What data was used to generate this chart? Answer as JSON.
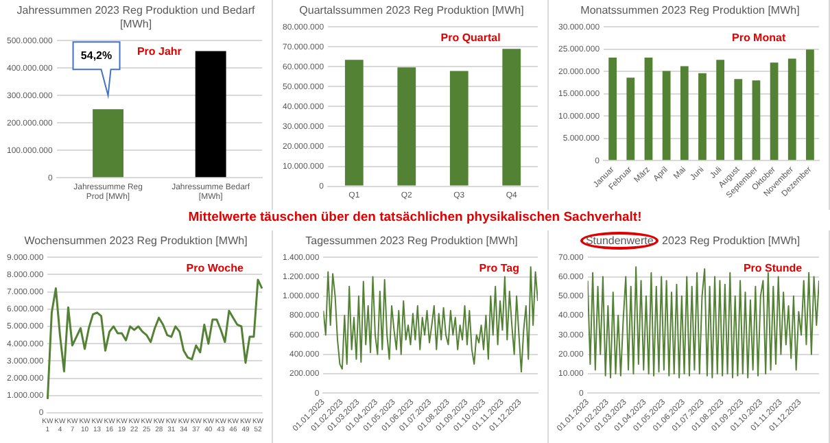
{
  "chart_data": [
    {
      "type": "bar",
      "title": "Jahressummen 2023 Reg Produktion und Bedarf [MWh]",
      "categories": [
        "Jahressumme Reg Prod [MWh]",
        "Jahressumme Bedarf [MWh]"
      ],
      "values": [
        250000000,
        462000000
      ],
      "colors": [
        "#548235",
        "#000000"
      ],
      "ylim": [
        0,
        500000000
      ],
      "yticks": [
        {
          "value": 0,
          "label": "0"
        },
        {
          "value": 100000000,
          "label": "100.000.000"
        },
        {
          "value": 200000000,
          "label": "200.000.000"
        },
        {
          "value": 300000000,
          "label": "300.000.000"
        },
        {
          "value": 400000000,
          "label": "400.000.000"
        },
        {
          "value": 500000000,
          "label": "500.000.000"
        }
      ],
      "grid": "y",
      "annotations": [
        "54,2%",
        "Pro Jahr"
      ]
    },
    {
      "type": "bar",
      "title": "Quartalssummen 2023 Reg Produktion [MWh]",
      "categories": [
        "Q1",
        "Q2",
        "Q3",
        "Q4"
      ],
      "values": [
        63500000,
        59700000,
        57900000,
        69000000
      ],
      "color": "#548235",
      "ylim": [
        0,
        80000000
      ],
      "yticks": [
        {
          "value": 0,
          "label": "0"
        },
        {
          "value": 10000000,
          "label": "10.000.000"
        },
        {
          "value": 20000000,
          "label": "20.000.000"
        },
        {
          "value": 30000000,
          "label": "30.000.000"
        },
        {
          "value": 40000000,
          "label": "40.000.000"
        },
        {
          "value": 50000000,
          "label": "50.000.000"
        },
        {
          "value": 60000000,
          "label": "60.000.000"
        },
        {
          "value": 70000000,
          "label": "70.000.000"
        },
        {
          "value": 80000000,
          "label": "80.000.000"
        }
      ],
      "grid": "y",
      "annotations": [
        "Pro Quartal"
      ]
    },
    {
      "type": "bar",
      "title": "Monatssummen 2023 Reg Produktion [MWh]",
      "categories": [
        "Januar",
        "Februar",
        "März",
        "April",
        "Mai",
        "Juni",
        "Juli",
        "August",
        "September",
        "Oktober",
        "November",
        "Dezember"
      ],
      "values": [
        23100000,
        18600000,
        23100000,
        20100000,
        21200000,
        19600000,
        22600000,
        18300000,
        18000000,
        22000000,
        22900000,
        24900000
      ],
      "color": "#548235",
      "ylim": [
        0,
        30000000
      ],
      "yticks": [
        {
          "value": 0,
          "label": "0"
        },
        {
          "value": 5000000,
          "label": "5.000.000"
        },
        {
          "value": 10000000,
          "label": "10.000.000"
        },
        {
          "value": 15000000,
          "label": "15.000.000"
        },
        {
          "value": 20000000,
          "label": "20.000.000"
        },
        {
          "value": 25000000,
          "label": "25.000.000"
        },
        {
          "value": 30000000,
          "label": "30.000.000"
        }
      ],
      "grid": "y",
      "annotations": [
        "Pro Monat"
      ]
    },
    {
      "type": "other",
      "title": "Mittelwerte täuschen über den tatsächlichen physikalischen Sachverhalt!"
    },
    {
      "type": "line",
      "title": "Wochensummen 2023 Reg Produktion [MWh]",
      "categories": [
        "KW 1",
        null,
        null,
        "KW 4",
        null,
        null,
        "KW 7",
        null,
        null,
        "KW 10",
        null,
        null,
        "KW 13",
        null,
        null,
        "KW 16",
        null,
        null,
        "KW 19",
        null,
        null,
        "KW 22",
        null,
        null,
        "KW 25",
        null,
        null,
        "KW 28",
        null,
        null,
        "KW 31",
        null,
        null,
        "KW 34",
        null,
        null,
        "KW 37",
        null,
        null,
        "KW 40",
        null,
        null,
        "KW 43",
        null,
        null,
        "KW 46",
        null,
        null,
        "KW 49",
        null,
        null,
        "KW 52",
        null
      ],
      "values": [
        800000,
        5800000,
        7200000,
        4500000,
        2400000,
        6100000,
        3900000,
        4400000,
        4900000,
        3700000,
        4900000,
        5700000,
        5800000,
        5600000,
        3600000,
        4700000,
        5000000,
        4600000,
        4600000,
        4200000,
        5000000,
        4800000,
        5000000,
        4700000,
        4500000,
        4100000,
        4900000,
        5500000,
        5100000,
        4500000,
        4400000,
        5000000,
        4700000,
        3600000,
        3200000,
        3100000,
        3900000,
        3500000,
        5100000,
        4000000,
        5400000,
        5400000,
        4800000,
        4100000,
        5900000,
        5500000,
        5100000,
        5000000,
        2900000,
        4400000,
        4400000,
        7700000,
        7200000
      ],
      "color": "#548235",
      "marker": "none",
      "ylim": [
        0,
        9000000
      ],
      "yticks": [
        {
          "value": 0,
          "label": "0"
        },
        {
          "value": 1000000,
          "label": "1.000.000"
        },
        {
          "value": 2000000,
          "label": "2.000.000"
        },
        {
          "value": 3000000,
          "label": "3.000.000"
        },
        {
          "value": 4000000,
          "label": "4.000.000"
        },
        {
          "value": 5000000,
          "label": "5.000.000"
        },
        {
          "value": 6000000,
          "label": "6.000.000"
        },
        {
          "value": 7000000,
          "label": "7.000.000"
        },
        {
          "value": 8000000,
          "label": "8.000.000"
        },
        {
          "value": 9000000,
          "label": "9.000.000"
        }
      ],
      "grid": "y",
      "annotations": [
        "Pro Woche"
      ]
    },
    {
      "type": "line",
      "title": "Tagessummen 2023 Reg Produktion [MWh]",
      "x": [
        "2023-01-01",
        "2023-01-05",
        "2023-01-09",
        "2023-01-13",
        "2023-01-17",
        "2023-01-21",
        "2023-01-25",
        "2023-01-29",
        "2023-02-02",
        "2023-02-06",
        "2023-02-10",
        "2023-02-14",
        "2023-02-18",
        "2023-02-22",
        "2023-02-26",
        "2023-03-02",
        "2023-03-06",
        "2023-03-10",
        "2023-03-14",
        "2023-03-18",
        "2023-03-22",
        "2023-03-26",
        "2023-03-30",
        "2023-04-03",
        "2023-04-07",
        "2023-04-11",
        "2023-04-15",
        "2023-04-19",
        "2023-04-23",
        "2023-04-27",
        "2023-05-01",
        "2023-05-05",
        "2023-05-09",
        "2023-05-13",
        "2023-05-17",
        "2023-05-21",
        "2023-05-25",
        "2023-05-29",
        "2023-06-02",
        "2023-06-06",
        "2023-06-10",
        "2023-06-14",
        "2023-06-18",
        "2023-06-22",
        "2023-06-26",
        "2023-06-30",
        "2023-07-04",
        "2023-07-08",
        "2023-07-12",
        "2023-07-16",
        "2023-07-20",
        "2023-07-24",
        "2023-07-28",
        "2023-08-01",
        "2023-08-05",
        "2023-08-09",
        "2023-08-13",
        "2023-08-17",
        "2023-08-21",
        "2023-08-25",
        "2023-08-29",
        "2023-09-02",
        "2023-09-06",
        "2023-09-10",
        "2023-09-14",
        "2023-09-18",
        "2023-09-22",
        "2023-09-26",
        "2023-09-30",
        "2023-10-04",
        "2023-10-08",
        "2023-10-12",
        "2023-10-16",
        "2023-10-20",
        "2023-10-24",
        "2023-10-28",
        "2023-11-01",
        "2023-11-05",
        "2023-11-09",
        "2023-11-13",
        "2023-11-17",
        "2023-11-21",
        "2023-11-25",
        "2023-11-29",
        "2023-12-03",
        "2023-12-07",
        "2023-12-11",
        "2023-12-15",
        "2023-12-19",
        "2023-12-23",
        "2023-12-27",
        "2023-12-31"
      ],
      "values": [
        850000,
        600000,
        1250000,
        700000,
        1230000,
        1000000,
        550000,
        300000,
        250000,
        800000,
        300000,
        1100000,
        450000,
        780000,
        350000,
        1000000,
        320000,
        1150000,
        500000,
        900000,
        420000,
        1200000,
        600000,
        400000,
        1050000,
        450000,
        1170000,
        600000,
        350000,
        900000,
        650000,
        450000,
        850000,
        400000,
        950000,
        550000,
        700000,
        500000,
        820000,
        550000,
        900000,
        450000,
        780000,
        600000,
        850000,
        520000,
        700000,
        900000,
        450000,
        820000,
        550000,
        880000,
        600000,
        500000,
        850000,
        600000,
        780000,
        450000,
        700000,
        550000,
        900000,
        500000,
        850000,
        450000,
        300000,
        600000,
        520000,
        700000,
        450000,
        800000,
        350000,
        1000000,
        600000,
        1100000,
        500000,
        950000,
        650000,
        1200000,
        550000,
        1050000,
        700000,
        400000,
        1000000,
        600000,
        220000,
        650000,
        900000,
        350000,
        1300000,
        700000,
        1250000,
        950000
      ],
      "color": "#548235",
      "marker": "none",
      "xlim": [
        "2023-01-01",
        "2023-12-31"
      ],
      "xticks": [
        {
          "value": "2023-01-01",
          "label": "01.01.2023"
        },
        {
          "value": "2023-02-01",
          "label": "01.02.2023"
        },
        {
          "value": "2023-03-01",
          "label": "01.03.2023"
        },
        {
          "value": "2023-04-01",
          "label": "01.04.2023"
        },
        {
          "value": "2023-05-01",
          "label": "01.05.2023"
        },
        {
          "value": "2023-06-01",
          "label": "01.06.2023"
        },
        {
          "value": "2023-07-01",
          "label": "01.07.2023"
        },
        {
          "value": "2023-08-01",
          "label": "01.08.2023"
        },
        {
          "value": "2023-09-01",
          "label": "01.09.2023"
        },
        {
          "value": "2023-10-01",
          "label": "01.10.2023"
        },
        {
          "value": "2023-11-01",
          "label": "01.11.2023"
        },
        {
          "value": "2023-12-01",
          "label": "01.12.2023"
        }
      ],
      "ylim": [
        0,
        1400000
      ],
      "yticks": [
        {
          "value": 0,
          "label": "0"
        },
        {
          "value": 200000,
          "label": "200.000"
        },
        {
          "value": 400000,
          "label": "400.000"
        },
        {
          "value": 600000,
          "label": "600.000"
        },
        {
          "value": 800000,
          "label": "800.000"
        },
        {
          "value": 1000000,
          "label": "1.000.000"
        },
        {
          "value": 1200000,
          "label": "1.200.000"
        },
        {
          "value": 1400000,
          "label": "1.400.000"
        }
      ],
      "grid": "y",
      "annotations": [
        "Pro Tag"
      ]
    },
    {
      "type": "line",
      "title": "Stundenwerte 2023 Reg Produktion [MWh]",
      "x": [
        "2023-01-01",
        "2023-01-05",
        "2023-01-09",
        "2023-01-13",
        "2023-01-17",
        "2023-01-21",
        "2023-01-25",
        "2023-01-29",
        "2023-02-02",
        "2023-02-06",
        "2023-02-10",
        "2023-02-14",
        "2023-02-18",
        "2023-02-22",
        "2023-02-26",
        "2023-03-02",
        "2023-03-06",
        "2023-03-10",
        "2023-03-14",
        "2023-03-18",
        "2023-03-22",
        "2023-03-26",
        "2023-03-30",
        "2023-04-03",
        "2023-04-07",
        "2023-04-11",
        "2023-04-15",
        "2023-04-19",
        "2023-04-23",
        "2023-04-27",
        "2023-05-01",
        "2023-05-05",
        "2023-05-09",
        "2023-05-13",
        "2023-05-17",
        "2023-05-21",
        "2023-05-25",
        "2023-05-29",
        "2023-06-02",
        "2023-06-06",
        "2023-06-10",
        "2023-06-14",
        "2023-06-18",
        "2023-06-22",
        "2023-06-26",
        "2023-06-30",
        "2023-07-04",
        "2023-07-08",
        "2023-07-12",
        "2023-07-16",
        "2023-07-20",
        "2023-07-24",
        "2023-07-28",
        "2023-08-01",
        "2023-08-05",
        "2023-08-09",
        "2023-08-13",
        "2023-08-17",
        "2023-08-21",
        "2023-08-25",
        "2023-08-29",
        "2023-09-02",
        "2023-09-06",
        "2023-09-10",
        "2023-09-14",
        "2023-09-18",
        "2023-09-22",
        "2023-09-26",
        "2023-09-30",
        "2023-10-04",
        "2023-10-08",
        "2023-10-12",
        "2023-10-16",
        "2023-10-20",
        "2023-10-24",
        "2023-10-28",
        "2023-11-01",
        "2023-11-05",
        "2023-11-09",
        "2023-11-13",
        "2023-11-17",
        "2023-11-21",
        "2023-11-25",
        "2023-11-29",
        "2023-12-03",
        "2023-12-07",
        "2023-12-11",
        "2023-12-15",
        "2023-12-19",
        "2023-12-23",
        "2023-12-27",
        "2023-12-31"
      ],
      "values": [
        58000,
        15000,
        62000,
        12000,
        55000,
        20000,
        60000,
        9000,
        45000,
        8000,
        52000,
        10000,
        40000,
        9000,
        38000,
        60000,
        12000,
        55000,
        10000,
        65000,
        15000,
        58000,
        12000,
        50000,
        10000,
        62000,
        9000,
        55000,
        11000,
        60000,
        12000,
        58000,
        9000,
        52000,
        10000,
        56000,
        8000,
        50000,
        10000,
        60000,
        9000,
        55000,
        12000,
        62000,
        10000,
        50000,
        64000,
        9000,
        55000,
        8000,
        60000,
        10000,
        58000,
        9000,
        56000,
        10000,
        62000,
        8000,
        50000,
        9000,
        58000,
        10000,
        52000,
        8000,
        48000,
        12000,
        55000,
        9000,
        50000,
        58000,
        10000,
        62000,
        12000,
        55000,
        15000,
        60000,
        20000,
        52000,
        25000,
        45000,
        18000,
        50000,
        12000,
        42000,
        30000,
        58000,
        25000,
        62000,
        20000,
        60000,
        35000,
        58000
      ],
      "color": "#548235",
      "marker": "none",
      "xlim": [
        "2023-01-01",
        "2023-12-31"
      ],
      "xticks": [
        {
          "value": "2023-01-01",
          "label": "01.01.2023"
        },
        {
          "value": "2023-02-01",
          "label": "01.02.2023"
        },
        {
          "value": "2023-03-01",
          "label": "01.03.2023"
        },
        {
          "value": "2023-04-01",
          "label": "01.04.2023"
        },
        {
          "value": "2023-05-01",
          "label": "01.05.2023"
        },
        {
          "value": "2023-06-01",
          "label": "01.06.2023"
        },
        {
          "value": "2023-07-01",
          "label": "01.07.2023"
        },
        {
          "value": "2023-08-01",
          "label": "01.08.2023"
        },
        {
          "value": "2023-09-01",
          "label": "01.09.2023"
        },
        {
          "value": "2023-10-01",
          "label": "01.10.2023"
        },
        {
          "value": "2023-11-01",
          "label": "01.11.2023"
        },
        {
          "value": "2023-12-01",
          "label": "01.12.2023"
        }
      ],
      "ylim": [
        0,
        70000
      ],
      "yticks": [
        {
          "value": 0,
          "label": "0"
        },
        {
          "value": 10000,
          "label": "10.000"
        },
        {
          "value": 20000,
          "label": "20.000"
        },
        {
          "value": 30000,
          "label": "30.000"
        },
        {
          "value": 40000,
          "label": "40.000"
        },
        {
          "value": 50000,
          "label": "50.000"
        },
        {
          "value": 60000,
          "label": "60.000"
        },
        {
          "value": 70000,
          "label": "70.000"
        }
      ],
      "grid": "y",
      "annotations": [
        "Pro Stunde"
      ]
    }
  ]
}
